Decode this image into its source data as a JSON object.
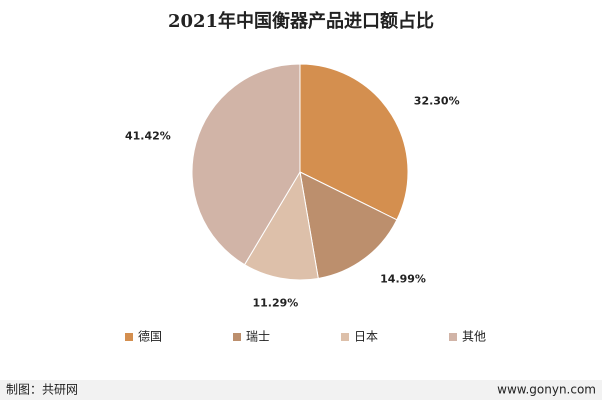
{
  "chart_data": {
    "type": "pie",
    "title": "2021年中国衡器产品进口额占比",
    "categories": [
      "德国",
      "瑞士",
      "日本",
      "其他"
    ],
    "values": [
      32.3,
      14.99,
      11.29,
      41.42
    ],
    "value_labels": [
      "32.30%",
      "14.99%",
      "11.29%",
      "41.42%"
    ],
    "colors": [
      "#d48f4f",
      "#bc8f6d",
      "#ddc0aa",
      "#d1b4a7"
    ],
    "legend": "bottom"
  },
  "footer": {
    "source": "制图：共研网",
    "website": "www.gonyn.com"
  }
}
